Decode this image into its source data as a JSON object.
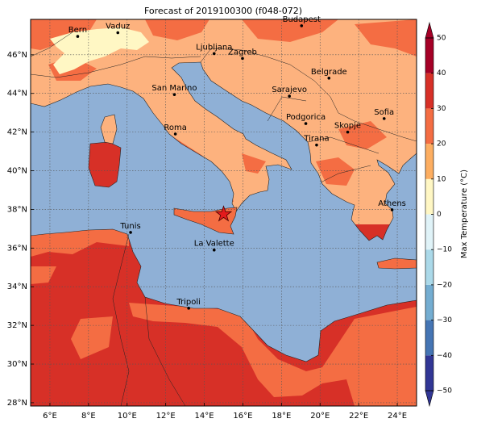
{
  "map": {
    "title": "Forecast of 2019100300 (f048-072)",
    "xlim": [
      5,
      25
    ],
    "ylim": [
      27.83,
      47.83
    ],
    "xticks": [
      {
        "value": 6,
        "label": "6°E"
      },
      {
        "value": 8,
        "label": "8°E"
      },
      {
        "value": 10,
        "label": "10°E"
      },
      {
        "value": 12,
        "label": "12°E"
      },
      {
        "value": 14,
        "label": "14°E"
      },
      {
        "value": 16,
        "label": "16°E"
      },
      {
        "value": 18,
        "label": "18°E"
      },
      {
        "value": 20,
        "label": "20°E"
      },
      {
        "value": 22,
        "label": "22°E"
      },
      {
        "value": 24,
        "label": "24°E"
      }
    ],
    "yticks": [
      {
        "value": 28,
        "label": "28°N"
      },
      {
        "value": 30,
        "label": "30°N"
      },
      {
        "value": 32,
        "label": "32°N"
      },
      {
        "value": 34,
        "label": "34°N"
      },
      {
        "value": 36,
        "label": "36°N"
      },
      {
        "value": 38,
        "label": "38°N"
      },
      {
        "value": 40,
        "label": "40°N"
      },
      {
        "value": 42,
        "label": "42°N"
      },
      {
        "value": 44,
        "label": "44°N"
      },
      {
        "value": 46,
        "label": "46°N"
      }
    ],
    "grid": true,
    "cities": [
      {
        "name": "Bern",
        "lon": 7.44,
        "lat": 46.95
      },
      {
        "name": "Vaduz",
        "lon": 9.52,
        "lat": 47.14
      },
      {
        "name": "Budapest",
        "lon": 19.04,
        "lat": 47.5
      },
      {
        "name": "Ljubljana",
        "lon": 14.51,
        "lat": 46.06
      },
      {
        "name": "Zagreb",
        "lon": 15.98,
        "lat": 45.81
      },
      {
        "name": "Belgrade",
        "lon": 20.46,
        "lat": 44.79
      },
      {
        "name": "San Marino",
        "lon": 12.45,
        "lat": 43.94
      },
      {
        "name": "Sarajevo",
        "lon": 18.41,
        "lat": 43.86
      },
      {
        "name": "Sofia",
        "lon": 23.32,
        "lat": 42.7
      },
      {
        "name": "Podgorica",
        "lon": 19.26,
        "lat": 42.44
      },
      {
        "name": "Skopje",
        "lon": 21.43,
        "lat": 42.0
      },
      {
        "name": "Roma",
        "lon": 12.5,
        "lat": 41.9
      },
      {
        "name": "Tirana",
        "lon": 19.82,
        "lat": 41.33
      },
      {
        "name": "Athens",
        "lon": 23.73,
        "lat": 37.98
      },
      {
        "name": "Tunis",
        "lon": 10.18,
        "lat": 36.81
      },
      {
        "name": "La Valette",
        "lon": 14.51,
        "lat": 35.9
      },
      {
        "name": "Tripoli",
        "lon": 13.19,
        "lat": 32.89
      }
    ],
    "marker": {
      "lon": 15.0,
      "lat": 37.75,
      "color": "#e31a1c"
    },
    "colorbar": {
      "label": "Max Temperature (°C)",
      "ticks": [
        {
          "value": -50,
          "label": "−50"
        },
        {
          "value": -40,
          "label": "−40"
        },
        {
          "value": -30,
          "label": "−30"
        },
        {
          "value": -20,
          "label": "−20"
        },
        {
          "value": -10,
          "label": "−10"
        },
        0,
        10,
        20,
        30,
        40,
        50
      ],
      "colors": [
        "#313695",
        "#4575b4",
        "#74add1",
        "#abd9e9",
        "#e0f3f8",
        "#fff7c4",
        "#fdae61",
        "#f46d43",
        "#d73027",
        "#a50026"
      ]
    }
  }
}
